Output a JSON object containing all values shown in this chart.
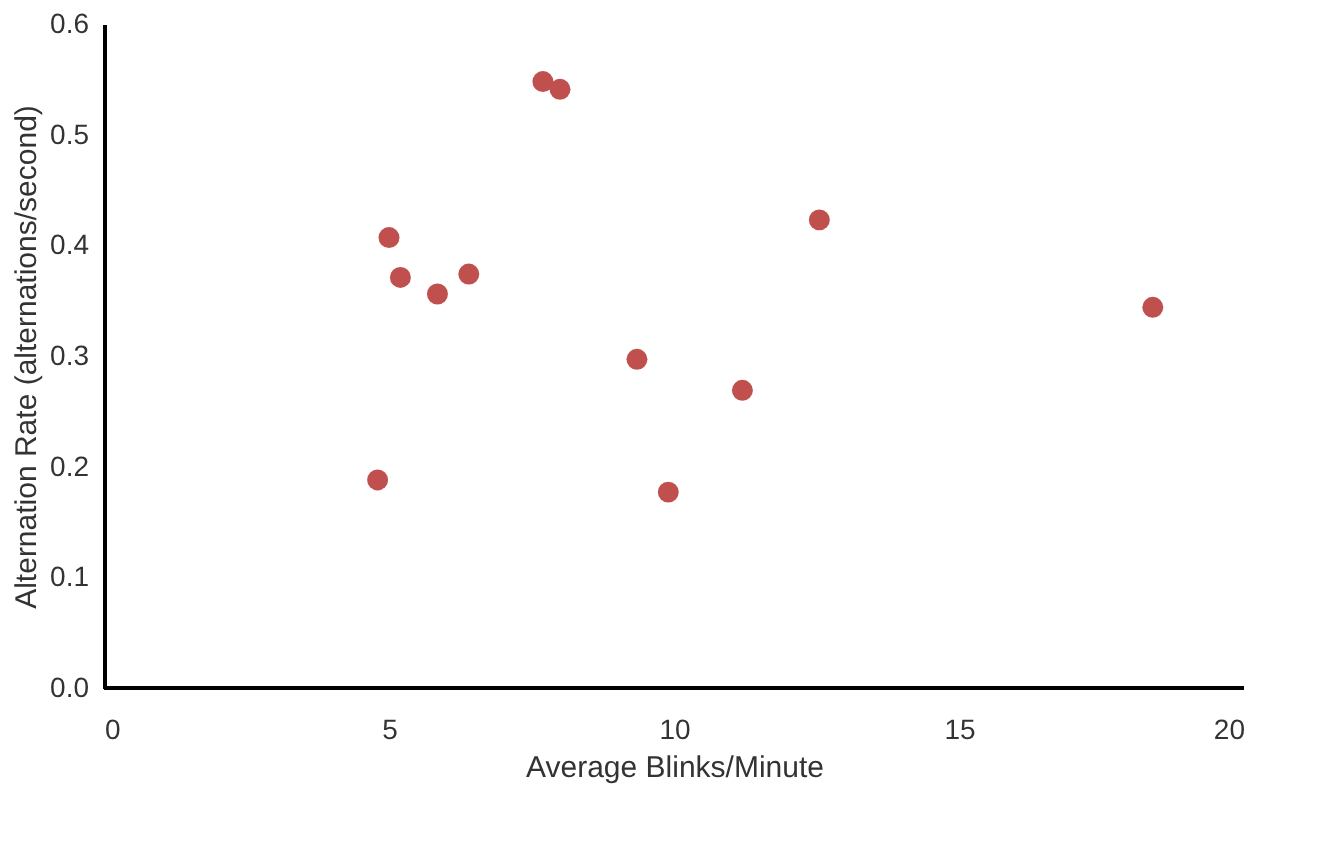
{
  "chart_data": {
    "type": "scatter",
    "xlabel": "Average Blinks/Minute",
    "ylabel": "Alternation Rate (alternations/second)",
    "x": [
      7.7,
      8.0,
      5.0,
      5.2,
      5.85,
      6.4,
      12.55,
      9.35,
      11.2,
      18.4,
      4.8,
      9.9
    ],
    "series": [
      {
        "color": "#c0504d",
        "values": [
          0.548,
          0.541,
          0.407,
          0.371,
          0.356,
          0.374,
          0.423,
          0.297,
          0.269,
          0.344,
          0.188,
          0.177
        ]
      }
    ],
    "xlim": [
      0,
      20
    ],
    "xticks": [
      0,
      5,
      10,
      15,
      20
    ],
    "ylim": [
      0,
      0.6
    ],
    "yticks": [
      {
        "value": 0,
        "label": "0.0"
      },
      0.1,
      0.2,
      0.3,
      0.4,
      0.5,
      0.6
    ],
    "marker": "circle",
    "grid": false
  }
}
